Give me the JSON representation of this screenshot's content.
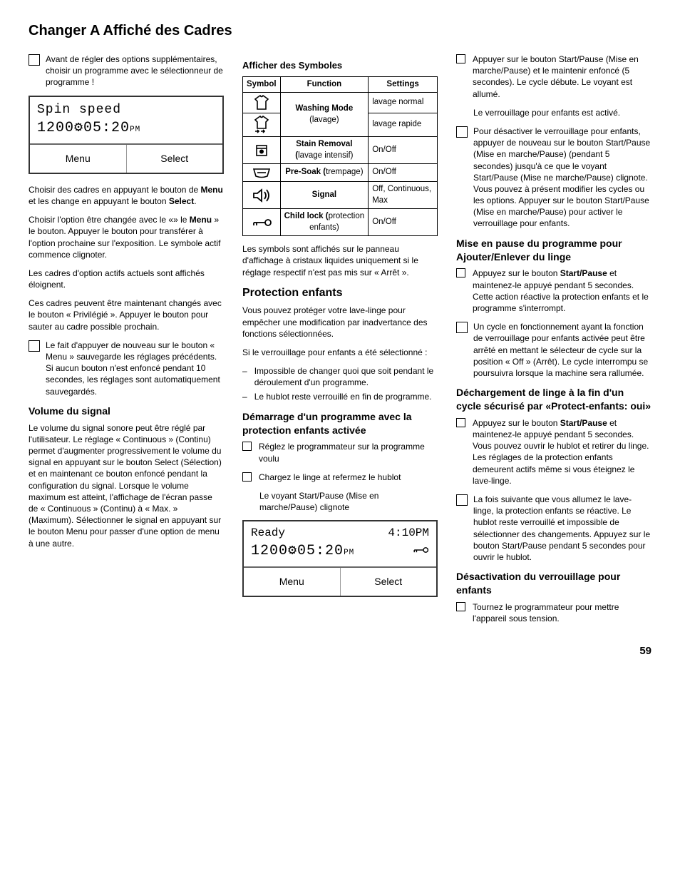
{
  "page_title": "Changer A Affiché des Cadres",
  "page_number": "59",
  "col1": {
    "note1": "Avant de régler des options supplémentaires, choisir un programme avec le sélectionneur de programme !",
    "display1": {
      "line1": "Spin speed",
      "line2_main": "1200⚙05:20",
      "line2_suffix": "PM",
      "btn_menu": "Menu",
      "btn_select": "Select"
    },
    "p1": "Choisir des cadres en appuyant le bouton de <b>Menu</b> et les change en appuyant le bouton <b>Select</b>.",
    "p2": "Choisir l'option être changée avec le «» le <b>Menu</b> » le bouton. Appuyer le bouton pour transférer à l'option prochaine sur l'exposition. Le symbole actif commence clignoter.",
    "p3": "Les cadres d'option actifs actuels sont affichés éloignent.",
    "p4": "Ces cadres peuvent être maintenant changés avec le bouton « Privilégié ». Appuyer le bouton pour sauter au cadre possible prochain.",
    "note2": "Le fait d'appuyer de nouveau sur le bouton « Menu » sauvegarde les réglages précédents. Si aucun bouton n'est enfoncé pendant 10 secondes, les réglages sont automatiquement sauvegardés.",
    "h_vol": "Volume du signal",
    "p_vol": "Le volume du signal sonore peut être réglé par l'utilisateur.  Le réglage « Continuous » (Continu) permet d'augmenter progressivement le volume du signal en appuyant sur le bouton Select (Sélection) et en maintenant ce bouton enfoncé pendant la configuration du signal. Lorsque le volume maximum est atteint, l'affichage de l'écran passe de « Continuous » (Continu) à « Max. » (Maximum).  Sélectionner le signal en appuyant sur le bouton Menu pour passer d'une option de menu à une autre."
  },
  "col2": {
    "h_aff": "Afficher des Symboles",
    "table": {
      "headers": [
        "Symbol",
        "Function",
        "Settings"
      ],
      "rows": [
        {
          "icon": "shirt",
          "fn": "<b>Washing Mode</b> (lavage)",
          "setting": "lavage normal",
          "rowspan_fn": 2
        },
        {
          "icon": "shirt-arrows",
          "fn": null,
          "setting": "lavage rapide"
        },
        {
          "icon": "stain",
          "fn": "<b>Stain Removal (</b>lavage intensif)",
          "setting": "On/Off"
        },
        {
          "icon": "presoak",
          "fn": "<b>Pre-Soak (</b>trempage)",
          "setting": "On/Off"
        },
        {
          "icon": "signal",
          "fn": "<b>Signal</b>",
          "setting": "Off, Continuous, Max"
        },
        {
          "icon": "key",
          "fn": "<b>Child lock (</b>protection enfants)",
          "setting": "On/Off"
        }
      ]
    },
    "p_after_table": "Les symbols sont affichés sur le panneau d'affichage à cristaux liquides uniquement si le réglage respectif n'est pas mis sur « Arrêt ».",
    "h_prot": "Protection enfants",
    "p_prot1": "Vous pouvez protéger votre lave-linge pour empêcher une modification par inadvertance des fonctions sélectionnées.",
    "p_prot2": "Si le verrouillage pour enfants a été sélectionné :",
    "dash_list": [
      "Impossible de changer quoi que soit pendant le déroulement d'un programme.",
      "Le hublot reste verrouillé en fin de programme."
    ],
    "h_dem": "Démarrage d'un programme avec la protection enfants activée",
    "task_list1": [
      "Réglez le programmateur sur la programme voulu",
      "Chargez le linge at refermez le hublot"
    ],
    "p_voy": "Le voyant Start/Pause (Mise en marche/Pause) clignote",
    "display2": {
      "top_left": "Ready",
      "top_right": "4:10PM",
      "line2_main": "1200⚙05:20",
      "line2_suffix": "PM",
      "btn_menu": "Menu",
      "btn_select": "Select"
    }
  },
  "col3": {
    "task_top": "Appuyer sur le bouton Start/Pause (Mise en marche/Pause) et le maintenir enfoncé (5 secondes). Le cycle débute. Le voyant est allumé.",
    "p_verr": "Le verrouillage pour enfants est activé.",
    "note_deact": "Pour désactiver le verrouillage pour enfants, appuyer de nouveau sur le bouton Start/Pause (Mise en marche/Pause) (pendant 5 secondes) jusqu'à ce que le voyant Start/Pause (Mise ne marche/Pause) clignote. Vous pouvez à présent modifier les cycles ou les options. Appuyer sur le bouton Start/Pause (Mise en marche/Pause) pour activer le verrouillage pour enfants.",
    "h_pause": "Mise en pause du programme pour Ajouter/Enlever du linge",
    "task_pause": "Appuyez sur le bouton <b>Start/Pause</b> et maintenez-le appuyé pendant 5 secondes. Cette action réactive la protection enfants et le programme s'interrompt.",
    "note_pause": "Un cycle en fonctionnement ayant la fonction de verrouillage pour enfants activée peut être arrêté en mettant le sélecteur de cycle sur la position « Off » (Arrêt). Le cycle interrompu se poursuivra lorsque la machine sera rallumée.",
    "h_dech": "Déchargement de linge à la fin d'un cycle sécurisé par «Protect-enfants: oui»",
    "task_dech": "Appuyez sur le bouton <b>Start/Pause</b> et maintenez-le appuyé pendant 5 secondes. Vous pouvez ouvrir le hublot et retirer du linge. Les réglages de la protection enfants demeurent actifs même si vous éteignez le lave-linge.",
    "note_dech": "La fois suivante que vous allumez le lave-linge, la protection enfants se réactive. Le hublot reste verrouillé et impossible de sélectionner des changements. Appuyez sur le bouton Start/Pause pendant 5 secondes pour ouvrir le hublot.",
    "h_desact": "Désactivation du verrouillage pour enfants",
    "task_desact": "Tournez le programmateur pour mettre l'appareil sous tension."
  }
}
